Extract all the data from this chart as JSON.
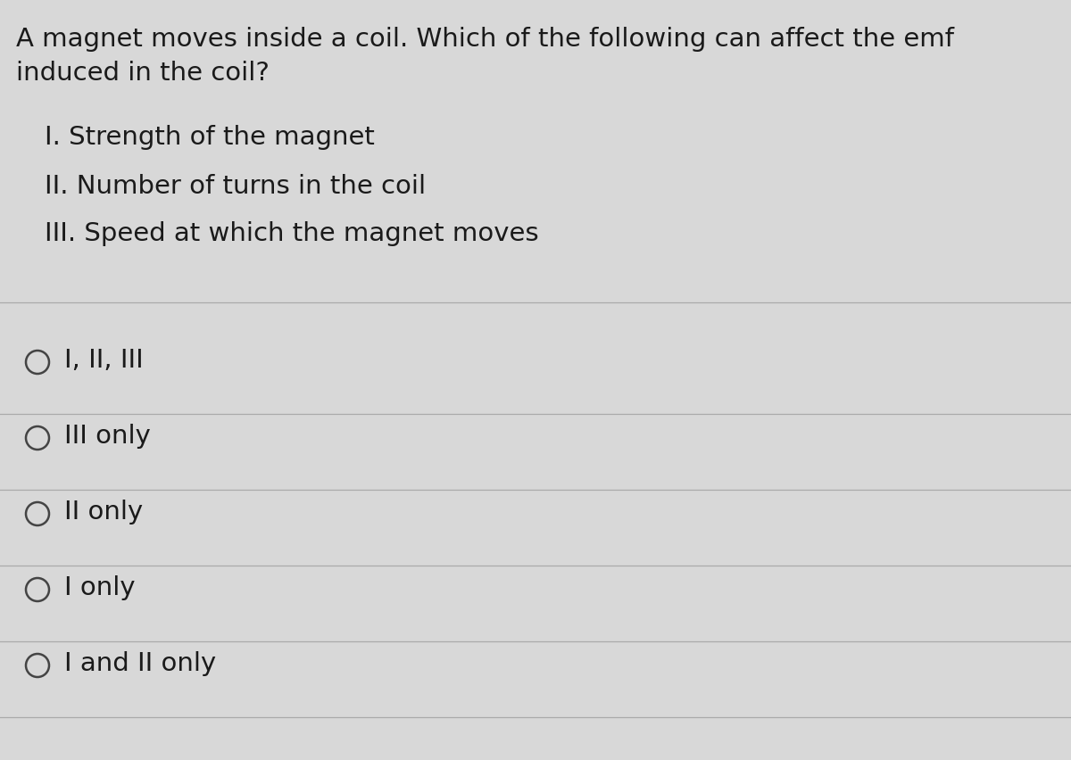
{
  "background_color": "#d8d8d8",
  "question_line1": "A magnet moves inside a coil. Which of the following can affect the emf",
  "question_line2": "induced in the coil?",
  "items": [
    "I. Strength of the magnet",
    "II. Number of turns in the coil",
    "III. Speed at which the magnet moves"
  ],
  "options": [
    "I, II, III",
    "III only",
    "II only",
    "I only",
    "I and II only"
  ],
  "text_color": "#1a1a1a",
  "line_color": "#aaaaaa",
  "circle_color": "#444444",
  "question_fontsize": 21,
  "item_fontsize": 21,
  "option_fontsize": 21,
  "figwidth": 12.0,
  "figheight": 8.53
}
